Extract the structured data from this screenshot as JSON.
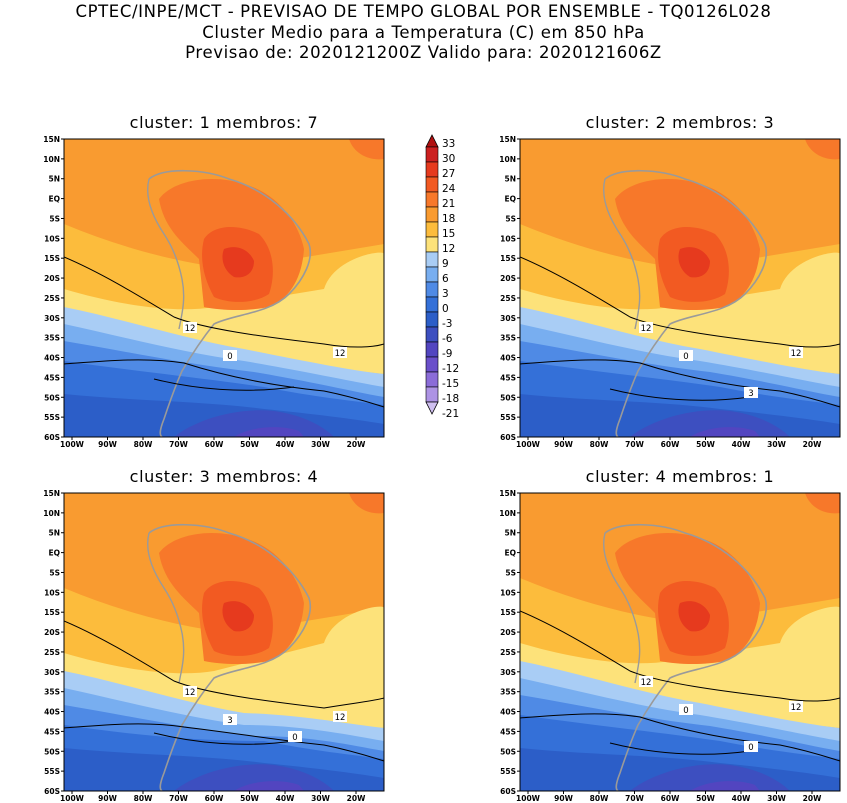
{
  "header": {
    "line1": "CPTEC/INPE/MCT - PREVISAO DE TEMPO GLOBAL POR ENSEMBLE - TQ0126L028",
    "line2": "Cluster Medio para a Temperatura (C) em 850 hPa",
    "line3": "Previsao de: 2020121200Z   Valido para: 2020121606Z"
  },
  "panels": [
    {
      "title": "cluster: 1   membros: 7",
      "contour_labels": [
        "12",
        "12",
        "0"
      ]
    },
    {
      "title": "cluster: 2   membros: 3",
      "contour_labels": [
        "12",
        "12",
        "0",
        "3"
      ]
    },
    {
      "title": "cluster: 3   membros: 4",
      "contour_labels": [
        "12",
        "12",
        "3",
        "0"
      ]
    },
    {
      "title": "cluster: 4   membros: 1",
      "contour_labels": [
        "12",
        "12",
        "0",
        "0"
      ]
    }
  ],
  "axes": {
    "lat_ticks": [
      "15N",
      "10N",
      "5N",
      "EQ",
      "5S",
      "10S",
      "15S",
      "20S",
      "25S",
      "30S",
      "35S",
      "40S",
      "45S",
      "50S",
      "55S",
      "60S"
    ],
    "lon_ticks": [
      "100W",
      "90W",
      "80W",
      "70W",
      "60W",
      "50W",
      "40W",
      "30W",
      "20W"
    ]
  },
  "colorbar": {
    "ticks": [
      "33",
      "30",
      "27",
      "24",
      "21",
      "18",
      "15",
      "12",
      "9",
      "6",
      "3",
      "0",
      "-3",
      "-6",
      "-9",
      "-12",
      "-15",
      "-18",
      "-21"
    ],
    "colors": [
      "#b01010",
      "#cc2020",
      "#e63a1e",
      "#f25a22",
      "#f7782a",
      "#f99b30",
      "#fcbc3c",
      "#fde27a",
      "#a9cdf5",
      "#78aef0",
      "#4f8ae5",
      "#3470d8",
      "#2c5ec8",
      "#3d4fc0",
      "#5245c0",
      "#6a4fca",
      "#8b6cd8",
      "#ad93e4",
      "#cfbff0"
    ]
  }
}
